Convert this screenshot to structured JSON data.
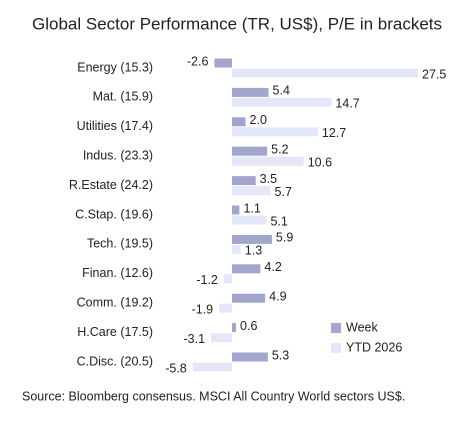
{
  "chart_data": {
    "type": "hbar",
    "title": "Global Sector Performance (TR, US$), P/E in brackets",
    "categories": [
      "Energy (15.3)",
      "Mat. (15.9)",
      "Utilities (17.4)",
      "Indus. (23.3)",
      "R.Estate (24.2)",
      "C.Stap. (19.6)",
      "Tech. (19.5)",
      "Finan. (12.6)",
      "Comm. (19.2)",
      "H.Care (17.5)",
      "C.Disc. (20.5)"
    ],
    "series": [
      {
        "name": "Week",
        "color": "#a3a6cc",
        "values": [
          -2.6,
          5.4,
          2.0,
          5.2,
          3.5,
          1.1,
          5.9,
          4.2,
          4.9,
          0.6,
          5.3
        ],
        "value_labels": [
          "-2.6",
          "5.4",
          "2.0",
          "5.2",
          "3.5",
          "1.1",
          "5.9",
          "4.2",
          "4.9",
          "0.6",
          "5.3"
        ]
      },
      {
        "name": "YTD 2026",
        "color": "#e4e7f8",
        "values": [
          27.5,
          14.7,
          12.7,
          10.6,
          5.7,
          5.1,
          1.3,
          -1.2,
          -1.9,
          -3.1,
          -5.8
        ],
        "value_labels": [
          "27.5",
          "14.7",
          "12.7",
          "10.6",
          "5.7",
          "5.1",
          "1.3",
          "-1.2",
          "-1.9",
          "-3.1",
          "-5.8"
        ]
      }
    ],
    "legend": "lower right",
    "source": "Source: Bloomberg consensus. MSCI All Country World sectors US$."
  }
}
